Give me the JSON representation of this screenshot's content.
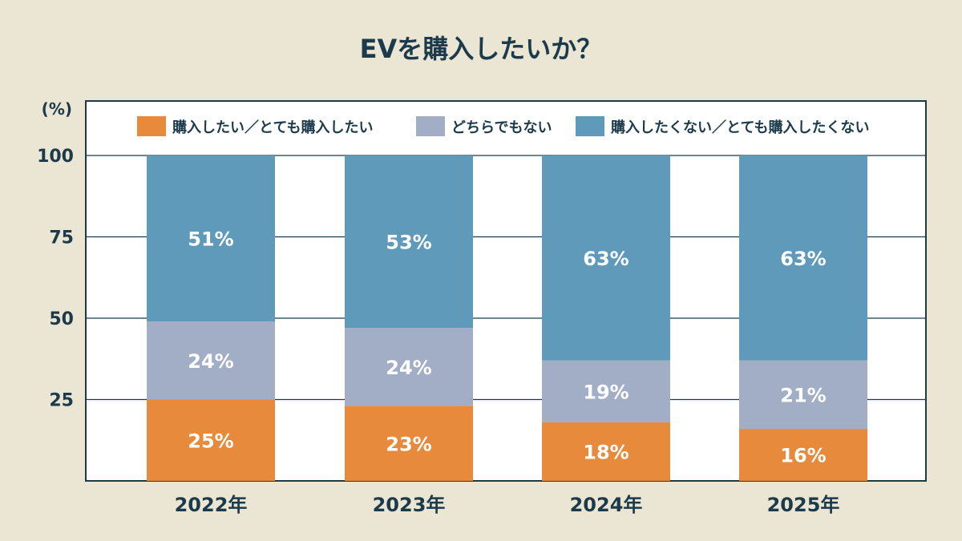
{
  "chart_data": {
    "type": "bar",
    "stacked": true,
    "title": "EVを購入したいか？",
    "ylabel": "(%)",
    "ylim": [
      0,
      100
    ],
    "yticks": [
      25,
      50,
      75,
      100
    ],
    "grid": true,
    "legend_position": "top",
    "categories": [
      "2022年",
      "2023年",
      "2024年",
      "2025年"
    ],
    "series": [
      {
        "name": "購入したい／とても購入したい",
        "color": "#e88a3c",
        "values": [
          25,
          23,
          18,
          16
        ]
      },
      {
        "name": "どちらでもない",
        "color": "#a2aec6",
        "values": [
          24,
          24,
          19,
          21
        ]
      },
      {
        "name": "購入したくない／とても購入したくない",
        "color": "#5f9abb",
        "values": [
          51,
          53,
          63,
          63
        ]
      }
    ],
    "label_suffix": "%"
  }
}
